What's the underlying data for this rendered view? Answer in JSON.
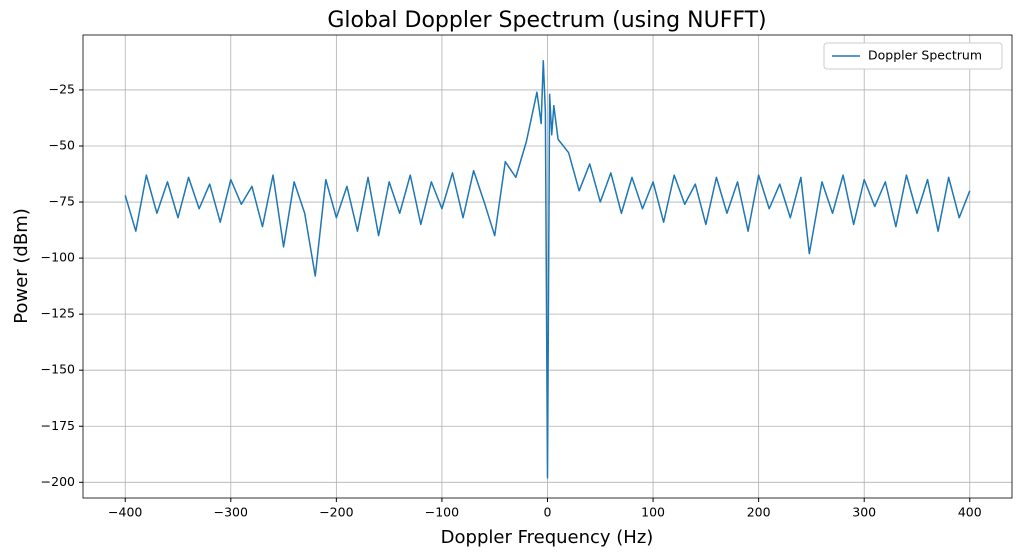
{
  "chart_data": {
    "type": "line",
    "title": "Global Doppler Spectrum (using NUFFT)",
    "x_label": "Doppler Frequency (Hz)",
    "y_label": "Power (dBm)",
    "x": [
      -400,
      -390,
      -380,
      -370,
      -360,
      -350,
      -340,
      -330,
      -320,
      -310,
      -300,
      -290,
      -280,
      -270,
      -260,
      -250,
      -240,
      -230,
      -220,
      -210,
      -200,
      -190,
      -180,
      -170,
      -160,
      -150,
      -140,
      -130,
      -120,
      -110,
      -100,
      -90,
      -80,
      -70,
      -60,
      -50,
      -40,
      -30,
      -20,
      -10,
      -6,
      -4,
      -2,
      0,
      2,
      4,
      6,
      10,
      20,
      30,
      40,
      50,
      60,
      70,
      80,
      90,
      100,
      110,
      120,
      130,
      140,
      150,
      160,
      170,
      180,
      190,
      200,
      210,
      220,
      230,
      240,
      248,
      260,
      270,
      280,
      290,
      300,
      310,
      320,
      330,
      340,
      350,
      360,
      370,
      380,
      390,
      400
    ],
    "series": [
      {
        "name": "Doppler Spectrum",
        "color": "#1f77b4",
        "values": [
          -72,
          -88,
          -63,
          -80,
          -66,
          -82,
          -64,
          -78,
          -67,
          -84,
          -65,
          -76,
          -68,
          -86,
          -63,
          -95,
          -66,
          -80,
          -108,
          -65,
          -82,
          -68,
          -88,
          -64,
          -90,
          -66,
          -80,
          -63,
          -85,
          -66,
          -78,
          -62,
          -82,
          -61,
          -75,
          -90,
          -57,
          -64,
          -48,
          -26,
          -40,
          -12,
          -35,
          -198,
          -27,
          -45,
          -32,
          -47,
          -53,
          -70,
          -58,
          -75,
          -62,
          -80,
          -64,
          -78,
          -66,
          -84,
          -63,
          -76,
          -67,
          -85,
          -64,
          -80,
          -66,
          -88,
          -63,
          -78,
          -67,
          -82,
          -64,
          -98,
          -66,
          -80,
          -63,
          -85,
          -65,
          -77,
          -66,
          -86,
          -63,
          -80,
          -65,
          -88,
          -64,
          -82,
          -70
        ]
      }
    ],
    "xlim": [
      -440,
      440
    ],
    "ylim": [
      -207,
      -0.5
    ],
    "xticks": [
      {
        "value": -400,
        "label": "−400"
      },
      {
        "value": -300,
        "label": "−300"
      },
      {
        "value": -200,
        "label": "−200"
      },
      {
        "value": -100,
        "label": "−100"
      },
      0,
      100,
      200,
      300,
      400
    ],
    "yticks": [
      {
        "value": -200,
        "label": "−200"
      },
      {
        "value": -175,
        "label": "−175"
      },
      {
        "value": -150,
        "label": "−150"
      },
      {
        "value": -125,
        "label": "−125"
      },
      {
        "value": -100,
        "label": "−100"
      },
      {
        "value": -75,
        "label": "−75"
      },
      {
        "value": -50,
        "label": "−50"
      },
      {
        "value": -25,
        "label": "−25"
      }
    ],
    "grid": true,
    "legend": "upper right"
  }
}
